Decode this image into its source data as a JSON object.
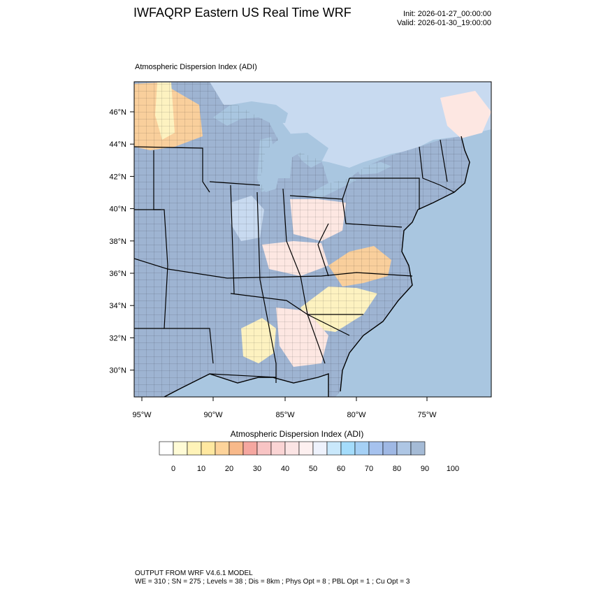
{
  "header": {
    "title": "IWFAQRP Eastern US Real Time WRF",
    "init": "Init: 2026-01-27_00:00:00",
    "valid": "Valid: 2026-01-30_19:00:00"
  },
  "map": {
    "field_title": "Atmospheric Dispersion Index   (ADI)",
    "lat_labels": [
      "46°N",
      "44°N",
      "42°N",
      "40°N",
      "38°N",
      "36°N",
      "34°N",
      "32°N",
      "30°N"
    ],
    "lon_labels": [
      "95°W",
      "90°W",
      "85°W",
      "80°W",
      "75°W"
    ],
    "colors": {
      "water": "#a9c6e0",
      "land_high": "#9eb4d2",
      "land_mid": "#c8daf0",
      "land_low": "#fde7e2",
      "land_orange": "#f9cf9c",
      "land_yellow": "#fdf2c0",
      "borders": "#000000"
    }
  },
  "colorbar": {
    "title": "Atmospheric Dispersion Index  (ADI)",
    "tick_labels": [
      "0",
      "10",
      "20",
      "30",
      "40",
      "50",
      "60",
      "70",
      "80",
      "90",
      "100"
    ],
    "swatches": [
      "#ffffff",
      "#fffbd6",
      "#fff3b8",
      "#ffe8a0",
      "#fdd39a",
      "#f8b98a",
      "#f5a7a0",
      "#f8c4c4",
      "#fad4d4",
      "#fbe4e4",
      "#fdf0f0",
      "#eef2fc",
      "#c9e8fb",
      "#a4dcfb",
      "#a5d0f5",
      "#a6c2ee",
      "#9fb8e4",
      "#aec6e4",
      "#a5bbd6"
    ]
  },
  "footer": {
    "line1": "OUTPUT FROM WRF V4.6.1 MODEL",
    "line2": "WE = 310 ; SN = 275 ; Levels = 38 ; Dis = 8km ; Phys Opt = 8 ; PBL Opt = 1 ; Cu Opt = 3"
  }
}
